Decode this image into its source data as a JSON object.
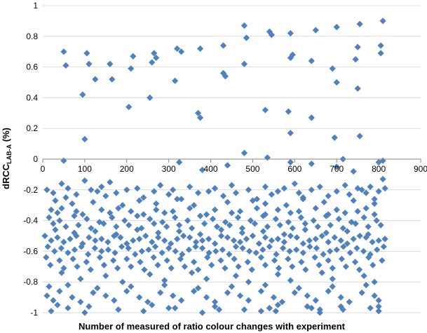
{
  "chart_data": {
    "type": "scatter",
    "xlabel": "Number of measured of ratio colour changes with experiment",
    "ylabel_main": "dRCC",
    "ylabel_sub": "LAB-A",
    "ylabel_unit": " (%)",
    "xlim": [
      0,
      900
    ],
    "ylim": [
      -1,
      1
    ],
    "xticks": [
      0,
      100,
      200,
      300,
      400,
      500,
      600,
      700,
      800,
      900
    ],
    "yticks": [
      1,
      0.8,
      0.6,
      0.4,
      0.2,
      0,
      -0.2,
      -0.4,
      -0.6,
      -0.8,
      -1
    ],
    "ytick_labels": [
      "1",
      "0.8",
      "0.6",
      "0.4",
      "0.2",
      "0",
      "-0.2",
      "-0.4",
      "-0.6",
      "-0.8",
      "-1"
    ],
    "grid": "horizontal",
    "marker": "diamond",
    "color": "#4F81BD",
    "series": [
      {
        "x": [
          50,
          55,
          105,
          110,
          160,
          165,
          210,
          215,
          260,
          265,
          270,
          320,
          330,
          375,
          430,
          480,
          485,
          540,
          545,
          590,
          595,
          650,
          700,
          750,
          755,
          805,
          810,
          430,
          435,
          480,
          590,
          640,
          690,
          700,
          745,
          805,
          95,
          100,
          205,
          255,
          315,
          370,
          375,
          480,
          530,
          585,
          590,
          640,
          695,
          750,
          755,
          50,
          125,
          325,
          380,
          440,
          535,
          590,
          640,
          700,
          715,
          740,
          800,
          810,
          10,
          25,
          45,
          55,
          60,
          80,
          100,
          115,
          130,
          140,
          150,
          160,
          175,
          200,
          225,
          240,
          265,
          280,
          300,
          310,
          330,
          350,
          370,
          395,
          410,
          430,
          450,
          460,
          490,
          510,
          530,
          545,
          560,
          575,
          600,
          610,
          620,
          640,
          660,
          680,
          700,
          720,
          730,
          750,
          760,
          770,
          780,
          790,
          800,
          810,
          815,
          30,
          70,
          120,
          190,
          230,
          270,
          320,
          360,
          440,
          500,
          530,
          580,
          620,
          670,
          740,
          790,
          20,
          35,
          45,
          80,
          95,
          140,
          160,
          180,
          210,
          240,
          270,
          290,
          310,
          350,
          390,
          410,
          450,
          470,
          510,
          530,
          560,
          590,
          610,
          650,
          680,
          700,
          720,
          750,
          770,
          790,
          15,
          40,
          75,
          105,
          135,
          165,
          195,
          225,
          255,
          285,
          315,
          345,
          375,
          405,
          435,
          465,
          495,
          525,
          555,
          585,
          615,
          645,
          675,
          705,
          735,
          765,
          795,
          25,
          55,
          85,
          115,
          145,
          175,
          205,
          235,
          265,
          295,
          325,
          355,
          385,
          415,
          445,
          475,
          505,
          535,
          565,
          595,
          625,
          655,
          685,
          715,
          745,
          775,
          805,
          30,
          75,
          125,
          175,
          225,
          275,
          325,
          375,
          425,
          475,
          525,
          575,
          625,
          675,
          725,
          775,
          5,
          20,
          35,
          50,
          65,
          80,
          95,
          110,
          125,
          140,
          155,
          170,
          185,
          200,
          215,
          230,
          245,
          260,
          275,
          290,
          305,
          320,
          335,
          350,
          365,
          380,
          395,
          410,
          425,
          440,
          455,
          470,
          485,
          500,
          515,
          530,
          545,
          560,
          575,
          590,
          605,
          620,
          635,
          650,
          665,
          680,
          695,
          710,
          725,
          740,
          755,
          770,
          785,
          800,
          815,
          12,
          28,
          44,
          60,
          76,
          92,
          108,
          124,
          140,
          156,
          172,
          188,
          204,
          220,
          236,
          252,
          268,
          284,
          300,
          316,
          332,
          348,
          364,
          380,
          396,
          412,
          428,
          444,
          460,
          476,
          492,
          508,
          524,
          540,
          556,
          572,
          588,
          604,
          620,
          636,
          652,
          668,
          684,
          700,
          716,
          732,
          748,
          764,
          780,
          796,
          812,
          8,
          40,
          72,
          104,
          136,
          168,
          200,
          232,
          264,
          296,
          328,
          360,
          392,
          424,
          456,
          488,
          520,
          552,
          584,
          616,
          648,
          680,
          712,
          744,
          776,
          808,
          18,
          50,
          82,
          114,
          146,
          178,
          210,
          242,
          274,
          306,
          338,
          370,
          402,
          434,
          466,
          498,
          530,
          562,
          594,
          626,
          658,
          690,
          722,
          754,
          786,
          45,
          150,
          255,
          355,
          460,
          560,
          665,
          765,
          90,
          190,
          290,
          390,
          490,
          590,
          690,
          790,
          15,
          60,
          130,
          210,
          290,
          370,
          450,
          530,
          610,
          690,
          770,
          40,
          120,
          200,
          280,
          360,
          440,
          520,
          600,
          680,
          760,
          10,
          70,
          150,
          230,
          310,
          390,
          470,
          550,
          630,
          710,
          790,
          25,
          90,
          170,
          250,
          330,
          410,
          490,
          570,
          650,
          730,
          800,
          35,
          110,
          260,
          410,
          560,
          710,
          60,
          180,
          300,
          420,
          540,
          660,
          780,
          20,
          100,
          240,
          380,
          520,
          660,
          800,
          315,
          480,
          540,
          555,
          630,
          640,
          715,
          800
        ],
        "y": [
          0.7,
          0.61,
          0.69,
          0.62,
          0.62,
          0.52,
          0.59,
          0.67,
          0.63,
          0.69,
          0.66,
          0.72,
          0.7,
          0.72,
          0.74,
          0.87,
          0.79,
          0.83,
          0.81,
          0.82,
          0.68,
          0.84,
          0.86,
          0.73,
          0.88,
          0.74,
          0.9,
          0.56,
          0.54,
          0.62,
          0.66,
          0.64,
          0.59,
          0.5,
          0.65,
          0.69,
          0.42,
          0.13,
          0.34,
          0.4,
          0.51,
          0.3,
          0.27,
          0.04,
          0.32,
          0.31,
          0.17,
          0.27,
          0.14,
          0.46,
          0.15,
          -0.01,
          0.52,
          -0.02,
          -0.07,
          -0.04,
          0.01,
          -0.02,
          -0.03,
          -0.05,
          0.0,
          -0.08,
          -0.02,
          -0.01,
          -0.2,
          -0.22,
          -0.16,
          -0.25,
          -0.19,
          -0.23,
          -0.14,
          -0.2,
          -0.21,
          -0.18,
          -0.24,
          -0.15,
          -0.22,
          -0.2,
          -0.19,
          -0.25,
          -0.21,
          -0.17,
          -0.23,
          -0.2,
          -0.26,
          -0.18,
          -0.22,
          -0.21,
          -0.19,
          -0.24,
          -0.17,
          -0.22,
          -0.2,
          -0.26,
          -0.18,
          -0.23,
          -0.21,
          -0.19,
          -0.16,
          -0.22,
          -0.25,
          -0.2,
          -0.18,
          -0.24,
          -0.21,
          -0.17,
          -0.23,
          -0.19,
          -0.2,
          -0.22,
          -0.18,
          -0.26,
          -0.21,
          -0.13,
          -0.19,
          -0.27,
          -0.29,
          -0.28,
          -0.3,
          -0.27,
          -0.29,
          -0.26,
          -0.3,
          -0.28,
          -0.27,
          -0.29,
          -0.3,
          -0.26,
          -0.28,
          -0.27,
          -0.29,
          -0.33,
          -0.35,
          -0.32,
          -0.34,
          -0.36,
          -0.33,
          -0.35,
          -0.32,
          -0.34,
          -0.36,
          -0.33,
          -0.35,
          -0.34,
          -0.32,
          -0.36,
          -0.33,
          -0.35,
          -0.34,
          -0.32,
          -0.36,
          -0.33,
          -0.35,
          -0.34,
          -0.32,
          -0.36,
          -0.33,
          -0.35,
          -0.34,
          -0.32,
          -0.36,
          -0.38,
          -0.4,
          -0.37,
          -0.39,
          -0.41,
          -0.38,
          -0.4,
          -0.37,
          -0.39,
          -0.41,
          -0.38,
          -0.4,
          -0.37,
          -0.39,
          -0.41,
          -0.38,
          -0.4,
          -0.37,
          -0.39,
          -0.41,
          -0.38,
          -0.4,
          -0.37,
          -0.39,
          -0.41,
          -0.38,
          -0.4,
          -0.42,
          -0.44,
          -0.43,
          -0.45,
          -0.42,
          -0.44,
          -0.43,
          -0.45,
          -0.42,
          -0.44,
          -0.43,
          -0.45,
          -0.42,
          -0.44,
          -0.43,
          -0.45,
          -0.42,
          -0.44,
          -0.43,
          -0.45,
          -0.42,
          -0.44,
          -0.43,
          -0.45,
          -0.42,
          -0.44,
          -0.43,
          -0.46,
          -0.48,
          -0.47,
          -0.49,
          -0.46,
          -0.48,
          -0.47,
          -0.49,
          -0.46,
          -0.48,
          -0.47,
          -0.49,
          -0.46,
          -0.48,
          -0.47,
          -0.49,
          -0.5,
          -0.53,
          -0.51,
          -0.54,
          -0.52,
          -0.5,
          -0.55,
          -0.51,
          -0.53,
          -0.52,
          -0.54,
          -0.5,
          -0.51,
          -0.55,
          -0.53,
          -0.52,
          -0.5,
          -0.54,
          -0.51,
          -0.53,
          -0.55,
          -0.52,
          -0.5,
          -0.51,
          -0.54,
          -0.53,
          -0.52,
          -0.55,
          -0.5,
          -0.51,
          -0.53,
          -0.54,
          -0.52,
          -0.5,
          -0.55,
          -0.51,
          -0.53,
          -0.52,
          -0.54,
          -0.5,
          -0.51,
          -0.55,
          -0.53,
          -0.52,
          -0.5,
          -0.54,
          -0.51,
          -0.53,
          -0.55,
          -0.52,
          -0.5,
          -0.51,
          -0.54,
          -0.53,
          -0.52,
          -0.57,
          -0.6,
          -0.58,
          -0.61,
          -0.59,
          -0.57,
          -0.62,
          -0.58,
          -0.6,
          -0.59,
          -0.61,
          -0.57,
          -0.58,
          -0.62,
          -0.6,
          -0.59,
          -0.57,
          -0.61,
          -0.58,
          -0.6,
          -0.62,
          -0.59,
          -0.57,
          -0.58,
          -0.61,
          -0.6,
          -0.59,
          -0.62,
          -0.57,
          -0.58,
          -0.6,
          -0.61,
          -0.59,
          -0.57,
          -0.62,
          -0.58,
          -0.6,
          -0.59,
          -0.61,
          -0.57,
          -0.58,
          -0.62,
          -0.6,
          -0.59,
          -0.57,
          -0.61,
          -0.58,
          -0.6,
          -0.62,
          -0.59,
          -0.57,
          -0.64,
          -0.66,
          -0.65,
          -0.67,
          -0.64,
          -0.66,
          -0.65,
          -0.67,
          -0.64,
          -0.66,
          -0.65,
          -0.67,
          -0.64,
          -0.66,
          -0.65,
          -0.67,
          -0.64,
          -0.66,
          -0.65,
          -0.67,
          -0.64,
          -0.66,
          -0.65,
          -0.67,
          -0.64,
          -0.66,
          -0.69,
          -0.71,
          -0.7,
          -0.72,
          -0.69,
          -0.71,
          -0.7,
          -0.72,
          -0.69,
          -0.71,
          -0.7,
          -0.72,
          -0.69,
          -0.71,
          -0.7,
          -0.72,
          -0.69,
          -0.71,
          -0.7,
          -0.72,
          -0.69,
          -0.71,
          -0.7,
          -0.72,
          -0.69,
          -0.74,
          -0.76,
          -0.75,
          -0.74,
          -0.76,
          -0.75,
          -0.74,
          -0.76,
          -0.78,
          -0.8,
          -0.79,
          -0.78,
          -0.8,
          -0.79,
          -0.78,
          -0.8,
          -0.83,
          -0.82,
          -0.84,
          -0.83,
          -0.82,
          -0.84,
          -0.83,
          -0.82,
          -0.84,
          -0.83,
          -0.82,
          -0.86,
          -0.87,
          -0.86,
          -0.87,
          -0.86,
          -0.87,
          -0.86,
          -0.87,
          -0.86,
          -0.87,
          -0.89,
          -0.9,
          -0.89,
          -0.9,
          -0.89,
          -0.9,
          -0.89,
          -0.9,
          -0.89,
          -0.9,
          -0.89,
          -0.92,
          -0.93,
          -0.92,
          -0.93,
          -0.92,
          -0.93,
          -0.92,
          -0.93,
          -0.92,
          -0.93,
          -0.92,
          -0.95,
          -0.96,
          -0.95,
          -0.96,
          -0.95,
          -0.96,
          -0.97,
          -0.98,
          -0.97,
          -0.98,
          -0.97,
          -0.98,
          -0.97,
          -0.99,
          -1.0,
          -0.99,
          -1.0,
          -0.99,
          -1.0,
          -0.99,
          -0.97,
          -0.98,
          -0.97,
          -0.99,
          -0.96,
          -0.97,
          -0.98,
          -0.96
        ]
      }
    ]
  }
}
